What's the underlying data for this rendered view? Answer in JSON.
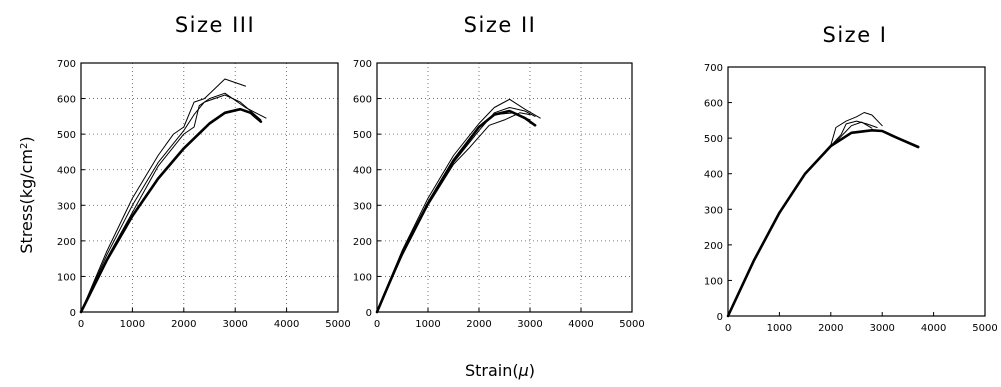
{
  "figure": {
    "ylabel_main": "Stress(kg/cm",
    "ylabel_sup": "2",
    "ylabel_close": ")",
    "xlabel_main": "Strain(",
    "xlabel_mu": "μ",
    "xlabel_close": ")"
  },
  "chart_data": [
    {
      "type": "line",
      "title": "Size III",
      "xlim": [
        0,
        5000
      ],
      "ylim": [
        0,
        700
      ],
      "xticks": [
        "0",
        "1000",
        "2000",
        "3000",
        "4000",
        "5000"
      ],
      "yticks": [
        "0",
        "100",
        "200",
        "300",
        "400",
        "500",
        "600",
        "700"
      ],
      "grid": true,
      "series": [
        {
          "points": [
            [
              0,
              0
            ],
            [
              500,
              170
            ],
            [
              1000,
              320
            ],
            [
              1500,
              440
            ],
            [
              1800,
              500
            ],
            [
              2000,
              520
            ],
            [
              2200,
              590
            ],
            [
              2400,
              600
            ],
            [
              2800,
              655
            ],
            [
              3200,
              635
            ]
          ],
          "width": 1
        },
        {
          "points": [
            [
              0,
              0
            ],
            [
              500,
              160
            ],
            [
              1000,
              300
            ],
            [
              1500,
              420
            ],
            [
              2000,
              510
            ],
            [
              2200,
              555
            ],
            [
              2400,
              590
            ],
            [
              2800,
              610
            ],
            [
              3100,
              590
            ],
            [
              3500,
              540
            ]
          ],
          "width": 1
        },
        {
          "points": [
            [
              0,
              0
            ],
            [
              500,
              150
            ],
            [
              1000,
              280
            ],
            [
              1500,
              410
            ],
            [
              2000,
              500
            ],
            [
              2200,
              520
            ],
            [
              2300,
              580
            ],
            [
              2500,
              600
            ],
            [
              2800,
              615
            ],
            [
              3200,
              575
            ],
            [
              3600,
              545
            ]
          ],
          "width": 1
        },
        {
          "points": [
            [
              0,
              0
            ],
            [
              500,
              145
            ],
            [
              1000,
              270
            ],
            [
              1500,
              375
            ],
            [
              2000,
              460
            ],
            [
              2500,
              530
            ],
            [
              2800,
              560
            ],
            [
              3100,
              570
            ],
            [
              3300,
              560
            ],
            [
              3500,
              535
            ]
          ],
          "width": 2.6
        }
      ]
    },
    {
      "type": "line",
      "title": "Size II",
      "xlim": [
        0,
        5000
      ],
      "ylim": [
        0,
        700
      ],
      "xticks": [
        "0",
        "1000",
        "2000",
        "3000",
        "4000",
        "5000"
      ],
      "yticks": [
        "0",
        "100",
        "200",
        "300",
        "400",
        "500",
        "600",
        "700"
      ],
      "grid": true,
      "series": [
        {
          "points": [
            [
              0,
              0
            ],
            [
              500,
              175
            ],
            [
              1000,
              320
            ],
            [
              1500,
              440
            ],
            [
              2000,
              530
            ],
            [
              2300,
              575
            ],
            [
              2600,
              598
            ],
            [
              2900,
              570
            ],
            [
              3200,
              545
            ]
          ],
          "width": 1
        },
        {
          "points": [
            [
              0,
              0
            ],
            [
              500,
              170
            ],
            [
              1000,
              310
            ],
            [
              1500,
              430
            ],
            [
              2000,
              520
            ],
            [
              2300,
              555
            ],
            [
              2700,
              560
            ],
            [
              3000,
              540
            ]
          ],
          "width": 1
        },
        {
          "points": [
            [
              0,
              0
            ],
            [
              500,
              165
            ],
            [
              1000,
              305
            ],
            [
              1500,
              420
            ],
            [
              2000,
              510
            ],
            [
              2300,
              560
            ],
            [
              2600,
              575
            ],
            [
              2900,
              565
            ],
            [
              3100,
              550
            ]
          ],
          "width": 1
        },
        {
          "points": [
            [
              0,
              0
            ],
            [
              500,
              160
            ],
            [
              1000,
              300
            ],
            [
              1500,
              415
            ],
            [
              1800,
              460
            ],
            [
              2200,
              525
            ],
            [
              2500,
              540
            ],
            [
              2800,
              560
            ],
            [
              3000,
              555
            ]
          ],
          "width": 1
        },
        {
          "points": [
            [
              0,
              0
            ],
            [
              500,
              168
            ],
            [
              1000,
              305
            ],
            [
              1500,
              425
            ],
            [
              2000,
              520
            ],
            [
              2300,
              555
            ],
            [
              2600,
              565
            ],
            [
              2900,
              545
            ],
            [
              3100,
              525
            ]
          ],
          "width": 2.6
        }
      ]
    },
    {
      "type": "line",
      "title": "Size I",
      "xlim": [
        0,
        5000
      ],
      "ylim": [
        0,
        700
      ],
      "xticks": [
        "0",
        "1000",
        "2000",
        "3000",
        "4000",
        "5000"
      ],
      "yticks": [
        "0",
        "100",
        "200",
        "300",
        "400",
        "500",
        "600",
        "700"
      ],
      "grid": false,
      "series": [
        {
          "points": [
            [
              0,
              0
            ],
            [
              500,
              155
            ],
            [
              1000,
              290
            ],
            [
              1500,
              400
            ],
            [
              2000,
              480
            ],
            [
              2100,
              530
            ],
            [
              2300,
              548
            ],
            [
              2500,
              560
            ],
            [
              2650,
              572
            ],
            [
              2800,
              565
            ],
            [
              3000,
              535
            ]
          ],
          "width": 1
        },
        {
          "points": [
            [
              0,
              0
            ],
            [
              500,
              155
            ],
            [
              1000,
              290
            ],
            [
              1500,
              400
            ],
            [
              2000,
              478
            ],
            [
              2200,
              510
            ],
            [
              2300,
              540
            ],
            [
              2500,
              548
            ],
            [
              2700,
              540
            ],
            [
              2900,
              530
            ]
          ],
          "width": 1
        },
        {
          "points": [
            [
              0,
              0
            ],
            [
              500,
              153
            ],
            [
              1000,
              288
            ],
            [
              1500,
              398
            ],
            [
              2000,
              475
            ],
            [
              2400,
              535
            ],
            [
              2600,
              545
            ],
            [
              2800,
              528
            ]
          ],
          "width": 1
        },
        {
          "points": [
            [
              0,
              0
            ],
            [
              500,
              155
            ],
            [
              1000,
              290
            ],
            [
              1500,
              400
            ],
            [
              2000,
              478
            ],
            [
              2400,
              515
            ],
            [
              2800,
              522
            ],
            [
              3000,
              520
            ],
            [
              3300,
              500
            ],
            [
              3700,
              475
            ]
          ],
          "width": 2.6
        }
      ]
    }
  ]
}
